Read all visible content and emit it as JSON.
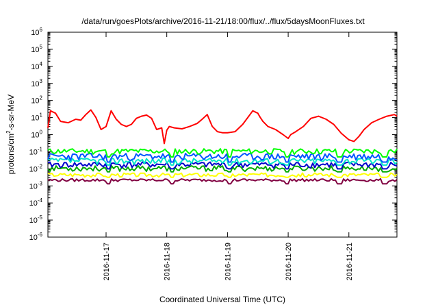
{
  "chart_data": {
    "type": "line",
    "title": "/data/run/goesPlots/archive/2016-11-21/18:00/flux/../flux/5daysMoonFluxes.txt",
    "xlabel": "Coordinated Universal Time (UTC)",
    "ylabel": {
      "pre": "protons/cm",
      "sup": "2",
      "post": "-s-sr-MeV"
    },
    "y_scale": "log",
    "ylim": [
      1e-06,
      1000000.0
    ],
    "xlim": [
      "2016-11-16T01:00",
      "2016-11-21T19:00"
    ],
    "grid": false,
    "legend": "none",
    "x_ticks": [
      "2016-11-17",
      "2016-11-18",
      "2016-11-19",
      "2016-11-20",
      "2016-11-21"
    ],
    "y_ticks": [
      {
        "base": "10",
        "exp": "-6"
      },
      {
        "base": "10",
        "exp": "-5"
      },
      {
        "base": "10",
        "exp": "-4"
      },
      {
        "base": "10",
        "exp": "-3"
      },
      {
        "base": "10",
        "exp": "-2"
      },
      {
        "base": "10",
        "exp": "-1"
      },
      {
        "base": "10",
        "exp": "0"
      },
      {
        "base": "10",
        "exp": "1"
      },
      {
        "base": "10",
        "exp": "2"
      },
      {
        "base": "10",
        "exp": "3"
      },
      {
        "base": "10",
        "exp": "4"
      },
      {
        "base": "10",
        "exp": "5"
      },
      {
        "base": "10",
        "exp": "6"
      }
    ],
    "series": [
      {
        "color": "#ff0000",
        "x": [
          "2016-11-16T01:00",
          "2016-11-16T02:00",
          "2016-11-16T04:00",
          "2016-11-16T06:00",
          "2016-11-16T09:00",
          "2016-11-16T12:00",
          "2016-11-16T14:00",
          "2016-11-16T16:00",
          "2016-11-16T18:00",
          "2016-11-16T20:00",
          "2016-11-16T22:00",
          "2016-11-17T00:00",
          "2016-11-17T02:00",
          "2016-11-17T04:00",
          "2016-11-17T06:00",
          "2016-11-17T08:00",
          "2016-11-17T10:00",
          "2016-11-17T12:00",
          "2016-11-17T14:00",
          "2016-11-17T16:00",
          "2016-11-17T18:00",
          "2016-11-17T20:00",
          "2016-11-17T22:00",
          "2016-11-17T23:00",
          "2016-11-18T00:00",
          "2016-11-18T01:00",
          "2016-11-18T03:00",
          "2016-11-18T06:00",
          "2016-11-18T09:00",
          "2016-11-18T12:00",
          "2016-11-18T14:00",
          "2016-11-18T16:00",
          "2016-11-18T18:00",
          "2016-11-18T20:00",
          "2016-11-18T22:00",
          "2016-11-19T00:00",
          "2016-11-19T03:00",
          "2016-11-19T06:00",
          "2016-11-19T08:00",
          "2016-11-19T10:00",
          "2016-11-19T12:00",
          "2016-11-19T13:00",
          "2016-11-19T14:00",
          "2016-11-19T16:00",
          "2016-11-19T19:00",
          "2016-11-19T22:00",
          "2016-11-20T00:00",
          "2016-11-20T01:00",
          "2016-11-20T03:00",
          "2016-11-20T06:00",
          "2016-11-20T09:00",
          "2016-11-20T12:00",
          "2016-11-20T15:00",
          "2016-11-20T18:00",
          "2016-11-20T21:00",
          "2016-11-21T00:00",
          "2016-11-21T02:00",
          "2016-11-21T04:00",
          "2016-11-21T06:00",
          "2016-11-21T09:00",
          "2016-11-21T12:00",
          "2016-11-21T15:00",
          "2016-11-21T18:00",
          "2016-11-21T19:00"
        ],
        "y": [
          2.5,
          25,
          18,
          6,
          5,
          8,
          7,
          15,
          28,
          10,
          2,
          3,
          25,
          8,
          4,
          3,
          4,
          9,
          12,
          14,
          9,
          2,
          2.5,
          0.3,
          1.8,
          3,
          2.5,
          2.2,
          3,
          4.5,
          8,
          15,
          3,
          1.5,
          1.3,
          1.3,
          1.5,
          4,
          10,
          25,
          18,
          10,
          6,
          3,
          2,
          1,
          0.6,
          1,
          1.5,
          3,
          9,
          12,
          8,
          4,
          1.2,
          0.5,
          0.4,
          0.8,
          2,
          5,
          8,
          12,
          15,
          12
        ]
      },
      {
        "color": "#00ff00",
        "base": 0.11,
        "amp": 0.04,
        "dip": 0.45,
        "seed": 11
      },
      {
        "color": "#0055ff",
        "base": 0.055,
        "amp": 0.025,
        "dip": 0.45,
        "seed": 23
      },
      {
        "color": "#00e6c8",
        "base": 0.03,
        "amp": 0.012,
        "dip": 0.55,
        "seed": 37
      },
      {
        "color": "#0000cc",
        "base": 0.018,
        "amp": 0.007,
        "dip": 0.55,
        "seed": 41
      },
      {
        "color": "#00aa00",
        "base": 0.011,
        "amp": 0.004,
        "dip": 0.6,
        "seed": 53
      },
      {
        "color": "#ffff00",
        "base": 0.0045,
        "amp": 0.0012,
        "dip": 0.7,
        "seed": 67
      },
      {
        "color": "#800040",
        "base": 0.0022,
        "amp": 0.0004,
        "dip": 0.6,
        "seed": 79
      }
    ]
  }
}
